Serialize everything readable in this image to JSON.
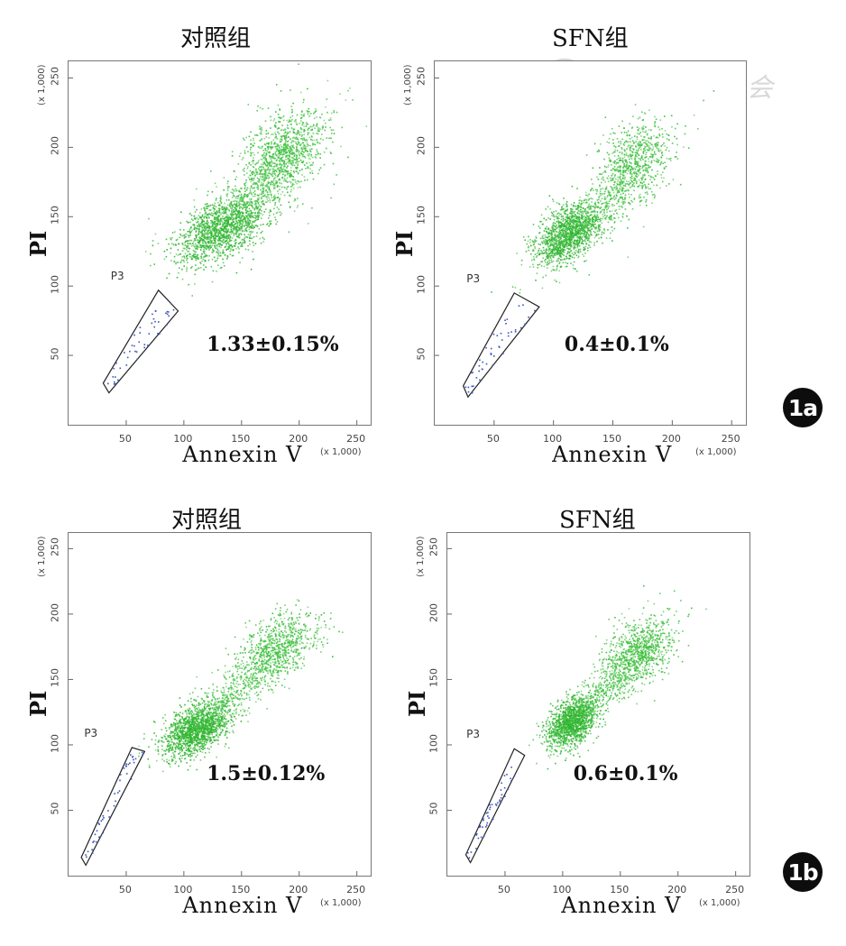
{
  "figure": {
    "watermark": "中华医学会",
    "badges": [
      "1a",
      "1b"
    ]
  },
  "chart_data": [
    {
      "type": "scatter",
      "row": "1a",
      "title": "对照组",
      "xlabel": "Annexin V",
      "ylabel": "PI",
      "x_unit": "(x 1,000)",
      "y_unit": "(x 1,000)",
      "xlim": [
        0,
        262
      ],
      "ylim": [
        0,
        262
      ],
      "xticks": [
        "50",
        "100",
        "150",
        "200",
        "250"
      ],
      "yticks": [
        "50",
        "100",
        "150",
        "200",
        "250"
      ],
      "gate": {
        "name": "P3",
        "polygon": [
          [
            35,
            23
          ],
          [
            95,
            82
          ],
          [
            78,
            97
          ],
          [
            30,
            30
          ]
        ]
      },
      "populations": [
        {
          "cx": 132,
          "cy": 142,
          "sx": 20,
          "sy": 11,
          "n": 1400,
          "color": "#2fb52f"
        },
        {
          "cx": 185,
          "cy": 195,
          "sx": 18,
          "sy": 16,
          "n": 900,
          "color": "#3cbf3c"
        },
        {
          "cx": 165,
          "cy": 170,
          "sx": 30,
          "sy": 26,
          "n": 500,
          "color": "#48c448",
          "spread": true
        }
      ],
      "annotation": "1.33±0.15%",
      "apoptosis_percent": 1.33,
      "sd": 0.15
    },
    {
      "type": "scatter",
      "row": "1a",
      "title": "SFN组",
      "xlabel": "Annexin V",
      "ylabel": "PI",
      "x_unit": "(x 1,000)",
      "y_unit": "(x 1,000)",
      "xlim": [
        0,
        262
      ],
      "ylim": [
        0,
        262
      ],
      "xticks": [
        "50",
        "100",
        "150",
        "200",
        "250"
      ],
      "yticks": [
        "50",
        "100",
        "150",
        "200",
        "250"
      ],
      "gate": {
        "name": "P3",
        "polygon": [
          [
            28,
            20
          ],
          [
            88,
            85
          ],
          [
            67,
            95
          ],
          [
            24,
            28
          ]
        ]
      },
      "populations": [
        {
          "cx": 112,
          "cy": 138,
          "sx": 14,
          "sy": 10,
          "n": 1300,
          "color": "#2fb52f"
        },
        {
          "cx": 168,
          "cy": 190,
          "sx": 15,
          "sy": 15,
          "n": 650,
          "color": "#3cbf3c"
        },
        {
          "cx": 140,
          "cy": 160,
          "sx": 26,
          "sy": 22,
          "n": 450,
          "color": "#48c448",
          "spread": true
        }
      ],
      "annotation": "0.4±0.1%",
      "apoptosis_percent": 0.4,
      "sd": 0.1
    },
    {
      "type": "scatter",
      "row": "1b",
      "title": "对照组",
      "xlabel": "Annexin V",
      "ylabel": "PI",
      "x_unit": "(x 1,000)",
      "y_unit": "(x 1,000)",
      "xlim": [
        0,
        262
      ],
      "ylim": [
        0,
        262
      ],
      "xticks": [
        "50",
        "100",
        "150",
        "200",
        "250"
      ],
      "yticks": [
        "50",
        "100",
        "150",
        "200",
        "250"
      ],
      "gate": {
        "name": "P3",
        "polygon": [
          [
            15,
            8
          ],
          [
            66,
            95
          ],
          [
            55,
            98
          ],
          [
            11,
            14
          ]
        ]
      },
      "populations": [
        {
          "cx": 110,
          "cy": 112,
          "sx": 14,
          "sy": 9,
          "n": 1400,
          "color": "#2fb52f"
        },
        {
          "cx": 180,
          "cy": 175,
          "sx": 17,
          "sy": 12,
          "n": 700,
          "color": "#3cbf3c"
        },
        {
          "cx": 145,
          "cy": 142,
          "sx": 30,
          "sy": 22,
          "n": 600,
          "color": "#48c448",
          "spread": true
        }
      ],
      "annotation": "1.5±0.12%",
      "apoptosis_percent": 1.5,
      "sd": 0.12
    },
    {
      "type": "scatter",
      "row": "1b",
      "title": "SFN组",
      "xlabel": "Annexin V",
      "ylabel": "PI",
      "x_unit": "(x 1,000)",
      "y_unit": "(x 1,000)",
      "xlim": [
        0,
        262
      ],
      "ylim": [
        0,
        262
      ],
      "xticks": [
        "50",
        "100",
        "150",
        "200",
        "250"
      ],
      "yticks": [
        "50",
        "100",
        "150",
        "200",
        "250"
      ],
      "gate": {
        "name": "P3",
        "polygon": [
          [
            20,
            10
          ],
          [
            67,
            92
          ],
          [
            58,
            97
          ],
          [
            16,
            16
          ]
        ]
      },
      "populations": [
        {
          "cx": 108,
          "cy": 118,
          "sx": 11,
          "sy": 9,
          "n": 1300,
          "color": "#2fb52f"
        },
        {
          "cx": 165,
          "cy": 170,
          "sx": 15,
          "sy": 13,
          "n": 800,
          "color": "#3cbf3c"
        },
        {
          "cx": 138,
          "cy": 145,
          "sx": 26,
          "sy": 22,
          "n": 500,
          "color": "#48c448",
          "spread": true
        }
      ],
      "annotation": "0.6±0.1%",
      "apoptosis_percent": 0.6,
      "sd": 0.1
    }
  ]
}
